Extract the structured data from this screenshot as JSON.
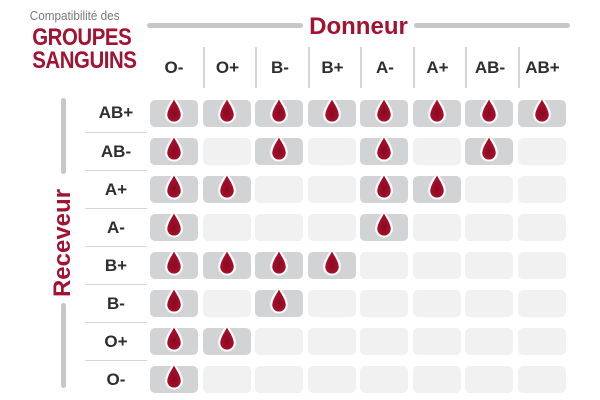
{
  "title": {
    "subtitle": "Compatibilité des",
    "line1": "GROUPES",
    "line2": "SANGUINS"
  },
  "axis": {
    "donor": "Donneur",
    "receiver": "Receveur"
  },
  "chart_data": {
    "type": "heatmap",
    "title": "Compatibilité des GROUPES SANGUINS",
    "x_axis_label": "Donneur",
    "y_axis_label": "Receveur",
    "columns": [
      "O-",
      "O+",
      "B-",
      "B+",
      "A-",
      "A+",
      "AB-",
      "AB+"
    ],
    "rows": [
      "AB+",
      "AB-",
      "A+",
      "A-",
      "B+",
      "B-",
      "O+",
      "O-"
    ],
    "matrix": [
      [
        1,
        1,
        1,
        1,
        1,
        1,
        1,
        1
      ],
      [
        1,
        0,
        1,
        0,
        1,
        0,
        1,
        0
      ],
      [
        1,
        1,
        0,
        0,
        1,
        1,
        0,
        0
      ],
      [
        1,
        0,
        0,
        0,
        1,
        0,
        0,
        0
      ],
      [
        1,
        1,
        1,
        1,
        0,
        0,
        0,
        0
      ],
      [
        1,
        0,
        1,
        0,
        0,
        0,
        0,
        0
      ],
      [
        1,
        1,
        0,
        0,
        0,
        0,
        0,
        0
      ],
      [
        1,
        0,
        0,
        0,
        0,
        0,
        0,
        0
      ]
    ],
    "cell_marker": "blood-drop-icon",
    "legend_position": "none",
    "grid": "off"
  },
  "colors": {
    "accent_red": "#a21332",
    "drop_red": "#a30d29",
    "drop_red_dark": "#870b20",
    "cell_filled": "#d2d3d5",
    "cell_empty": "#f1f1f2",
    "rail_gray": "#c6c7c9",
    "separator_gray": "#d4d5d6",
    "header_text": "#2d2e30",
    "subtitle_gray": "#77787b"
  }
}
